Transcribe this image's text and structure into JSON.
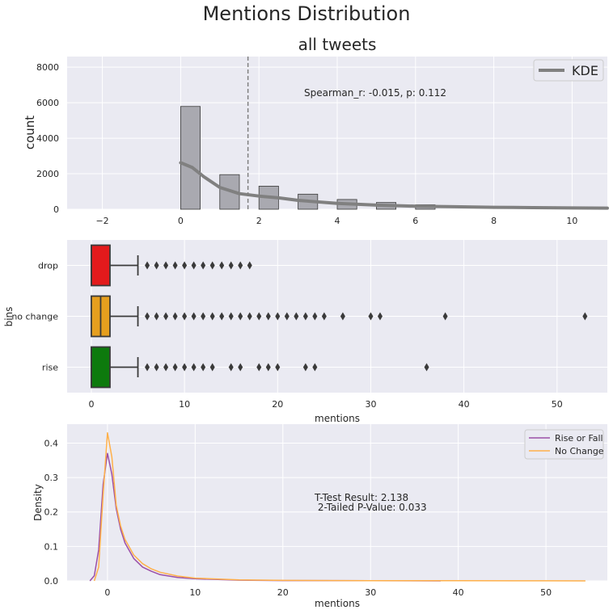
{
  "suptitle": "Mentions Distribution",
  "chart_data": [
    {
      "type": "histogram",
      "title": "all tweets",
      "xlabel": "",
      "ylabel": "count",
      "xlim": [
        -2.9,
        10.9
      ],
      "ylim": [
        0,
        8600
      ],
      "xticks": [
        -2,
        0,
        2,
        4,
        6,
        8,
        10
      ],
      "yticks": [
        0,
        2000,
        4000,
        6000,
        8000
      ],
      "grid": true,
      "bins": [
        {
          "x0": 0,
          "x1": 0.5,
          "count": 5790
        },
        {
          "x0": 1,
          "x1": 1.5,
          "count": 1950
        },
        {
          "x0": 2,
          "x1": 2.5,
          "count": 1300
        },
        {
          "x0": 3,
          "x1": 3.5,
          "count": 850
        },
        {
          "x0": 4,
          "x1": 4.5,
          "count": 550
        },
        {
          "x0": 5,
          "x1": 5.5,
          "count": 380
        },
        {
          "x0": 6,
          "x1": 6.5,
          "count": 250
        }
      ],
      "kde": {
        "name": "KDE",
        "x": [
          0,
          0.3,
          0.6,
          1.0,
          1.5,
          2.0,
          2.5,
          3.0,
          4.0,
          5.0,
          6.0,
          7.0,
          8.0,
          9.0,
          10.0,
          10.9
        ],
        "y": [
          2620,
          2350,
          1820,
          1230,
          880,
          740,
          640,
          500,
          330,
          230,
          175,
          140,
          110,
          90,
          75,
          65
        ]
      },
      "mean_line": 1.72,
      "annotation": "Spearman_r: -0.015, p: 0.112",
      "legend": {
        "placement": "top-right",
        "entries": [
          "KDE"
        ]
      }
    },
    {
      "type": "box",
      "title": "",
      "xlabel": "mentions",
      "ylabel": "bins",
      "xlim": [
        -2.6,
        55.4
      ],
      "xticks": [
        0,
        10,
        20,
        30,
        40,
        50
      ],
      "grid": true,
      "categories": [
        "drop",
        "no change",
        "rise"
      ],
      "boxes": [
        {
          "name": "drop",
          "color": "#e31a1c",
          "q1": 0,
          "median": 0,
          "q3": 2,
          "whisker_low": 0,
          "whisker_high": 5,
          "outliers": [
            6,
            7,
            8,
            9,
            10,
            11,
            12,
            13,
            14,
            15,
            16,
            17
          ]
        },
        {
          "name": "no change",
          "color": "#e69f1e",
          "q1": 0,
          "median": 1,
          "q3": 2,
          "whisker_low": 0,
          "whisker_high": 5,
          "outliers": [
            6,
            7,
            8,
            9,
            10,
            11,
            12,
            13,
            14,
            15,
            16,
            17,
            18,
            19,
            20,
            21,
            22,
            23,
            24,
            25,
            27,
            30,
            31,
            38,
            53
          ]
        },
        {
          "name": "rise",
          "color": "#0d7a0d",
          "q1": 0,
          "median": 0,
          "q3": 2,
          "whisker_low": 0,
          "whisker_high": 5,
          "outliers": [
            6,
            7,
            8,
            9,
            10,
            11,
            12,
            13,
            15,
            16,
            18,
            19,
            20,
            23,
            24,
            36
          ]
        }
      ]
    },
    {
      "type": "line",
      "title": "",
      "xlabel": "mentions",
      "ylabel": "Density",
      "xlim": [
        -4.6,
        57.0
      ],
      "ylim": [
        0,
        0.455
      ],
      "xticks": [
        0,
        10,
        20,
        30,
        40,
        50
      ],
      "yticks": [
        0.0,
        0.1,
        0.2,
        0.3,
        0.4
      ],
      "grid": true,
      "series": [
        {
          "name": "Rise or Fall",
          "color": "#9b4fa8",
          "x": [
            -2.0,
            -1.5,
            -1.0,
            -0.5,
            0.0,
            0.5,
            1.0,
            1.5,
            2.0,
            3.0,
            4.0,
            5.0,
            6.0,
            8.0,
            10.0,
            15.0,
            20.0,
            30.0,
            38.0
          ],
          "y": [
            0.0,
            0.015,
            0.09,
            0.28,
            0.37,
            0.31,
            0.21,
            0.15,
            0.11,
            0.065,
            0.04,
            0.028,
            0.018,
            0.01,
            0.006,
            0.002,
            0.001,
            0.0005,
            0.0
          ]
        },
        {
          "name": "No Change",
          "color": "#ffb04a",
          "x": [
            -1.5,
            -1.0,
            -0.5,
            0.0,
            0.5,
            1.0,
            1.5,
            2.0,
            3.0,
            4.0,
            5.0,
            6.0,
            8.0,
            10.0,
            15.0,
            20.0,
            30.0,
            40.0,
            50.0,
            54.5
          ],
          "y": [
            0.0,
            0.04,
            0.25,
            0.43,
            0.36,
            0.22,
            0.16,
            0.12,
            0.075,
            0.05,
            0.035,
            0.025,
            0.014,
            0.008,
            0.003,
            0.0015,
            0.0008,
            0.0004,
            0.0002,
            0.0
          ]
        }
      ],
      "annotation": [
        "T-Test Result: 2.138",
        " 2-Tailed P-Value: 0.033"
      ],
      "legend": {
        "placement": "top-right",
        "entries": [
          "Rise or Fall",
          "No Change"
        ]
      }
    }
  ]
}
